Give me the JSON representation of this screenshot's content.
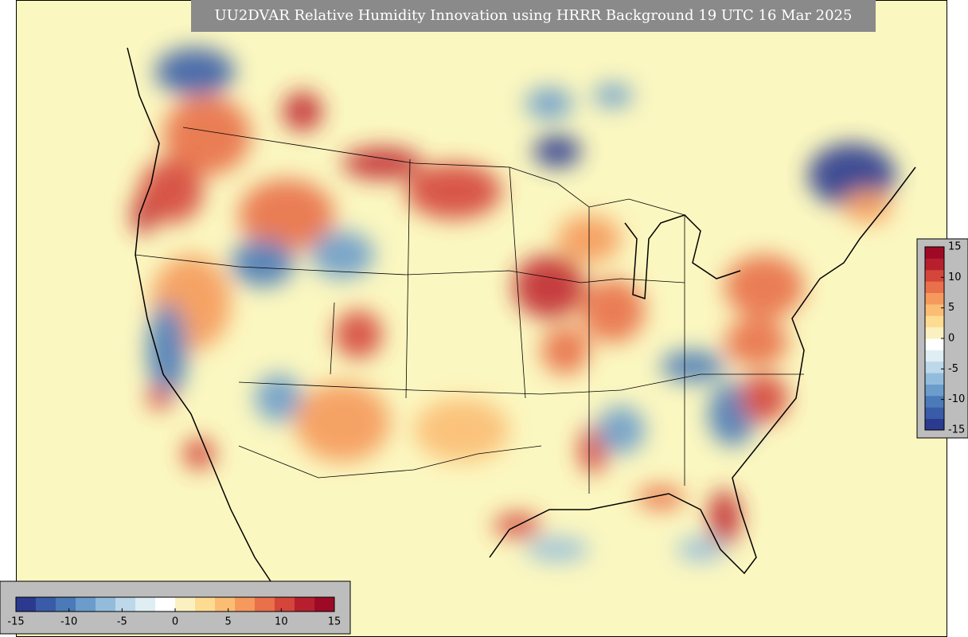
{
  "title": "UU2DVAR Relative Humidity Innovation using HRRR Background 19 UTC 16 Mar 2025",
  "colormap": [
    "#2b3a8f",
    "#3a5ca8",
    "#4a7ab8",
    "#6b9ccb",
    "#93bcdc",
    "#bcd8e9",
    "#dfeef3",
    "#ffffff",
    "#fbf1c0",
    "#fddc92",
    "#fbbd74",
    "#f59a5c",
    "#e8704a",
    "#d4453a",
    "#b81f2e",
    "#9e0a26"
  ],
  "colorbars": [
    {
      "orientation": "horizontal",
      "lim": [
        -15,
        15
      ],
      "ticks": [
        -15,
        -10,
        -5,
        0,
        5,
        10,
        15
      ]
    },
    {
      "orientation": "vertical",
      "lim": [
        -15,
        15
      ],
      "ticks": [
        -15,
        -10,
        -5,
        0,
        5,
        10,
        15
      ]
    }
  ]
}
